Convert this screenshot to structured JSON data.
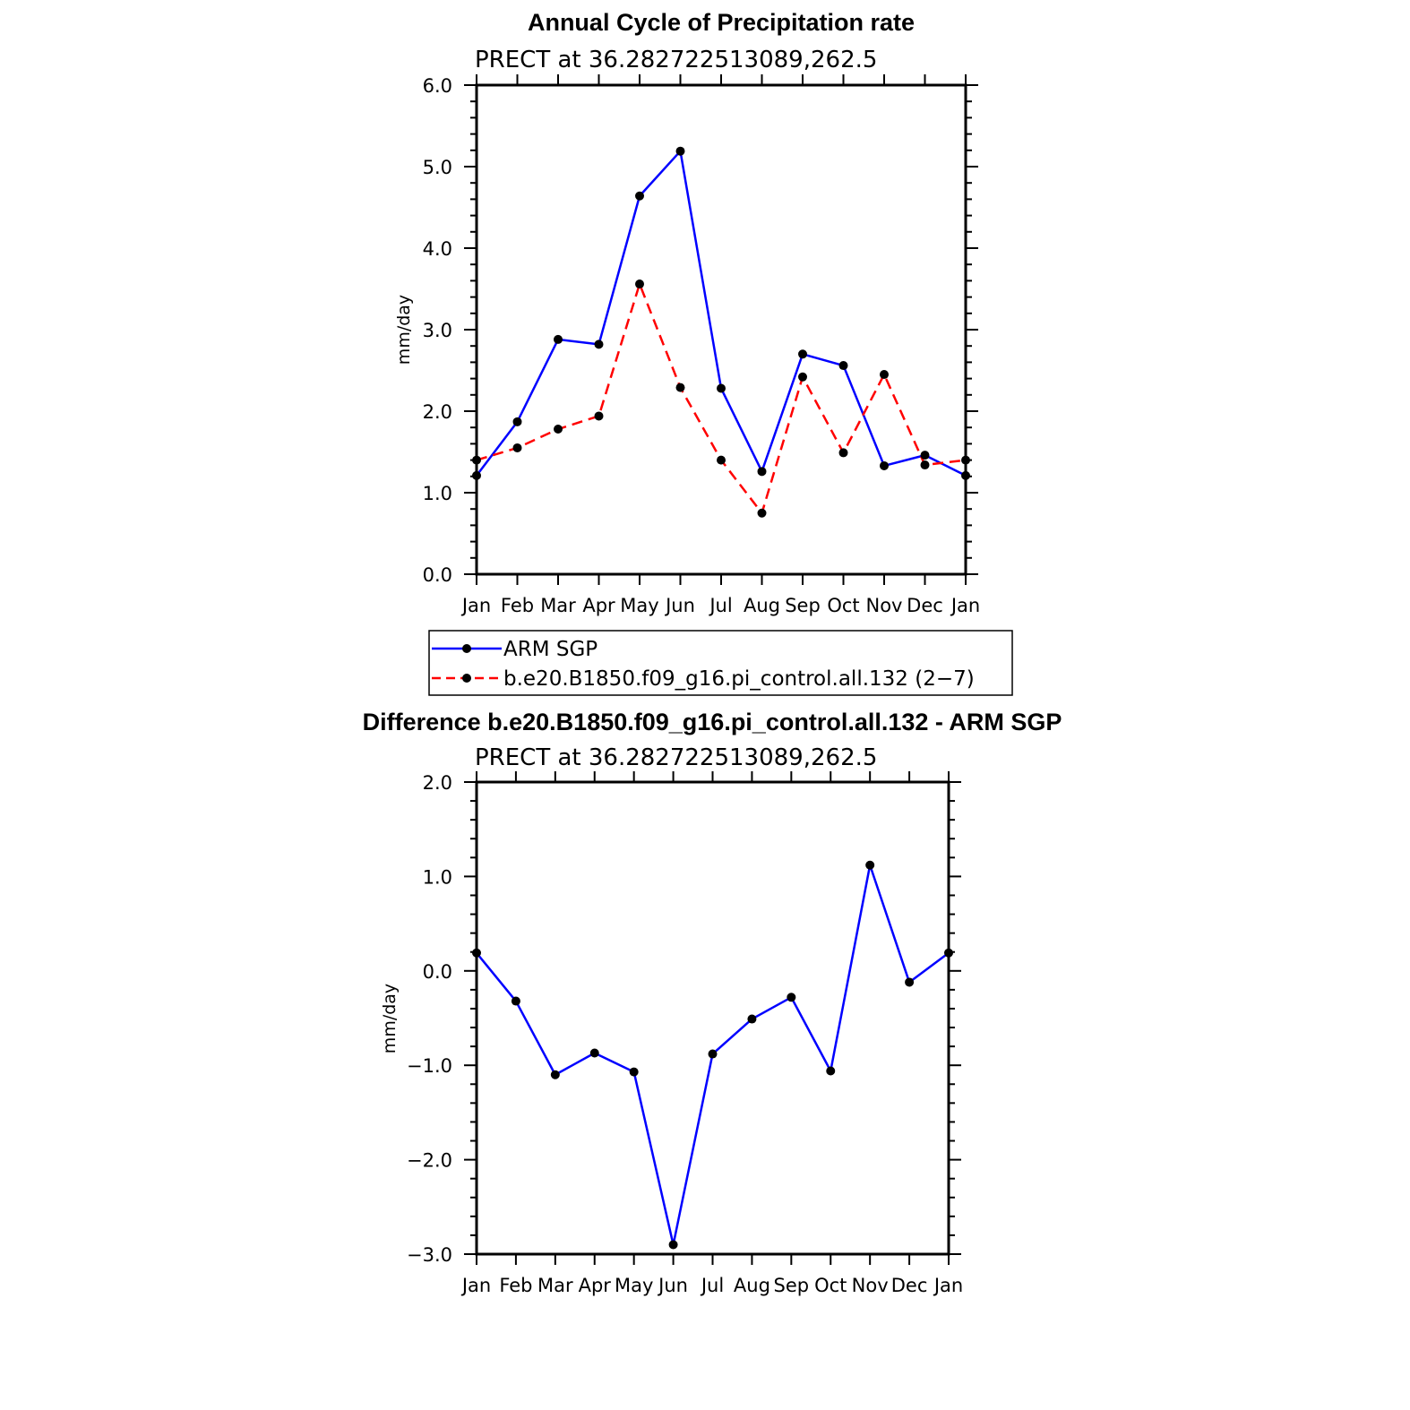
{
  "chart_data": [
    {
      "type": "line",
      "title": "Annual Cycle of Precipitation rate",
      "subtitle": "PRECT at 36.282722513089,262.5",
      "ylabel": "mm/day",
      "xlabel": "",
      "categories": [
        "Jan",
        "Feb",
        "Mar",
        "Apr",
        "May",
        "Jun",
        "Jul",
        "Aug",
        "Sep",
        "Oct",
        "Nov",
        "Dec",
        "Jan"
      ],
      "ylim": [
        0,
        6
      ],
      "yticks": [
        "0.0",
        "1.0",
        "2.0",
        "3.0",
        "4.0",
        "5.0",
        "6.0"
      ],
      "grid": false,
      "series": [
        {
          "name": "ARM SGP",
          "color": "#0000ff",
          "dash": "solid",
          "values": [
            1.21,
            1.87,
            2.88,
            2.82,
            4.64,
            5.19,
            2.28,
            1.26,
            2.7,
            2.56,
            1.33,
            1.46,
            1.21
          ]
        },
        {
          "name": "b.e20.B1850.f09_g16.pi_control.all.132 (2−7)",
          "color": "#ff0000",
          "dash": "dashed",
          "values": [
            1.4,
            1.55,
            1.78,
            1.94,
            3.56,
            2.29,
            1.4,
            0.75,
            2.42,
            1.49,
            2.45,
            1.34,
            1.4
          ]
        }
      ],
      "legend": "below"
    },
    {
      "type": "line",
      "title": "Difference b.e20.B1850.f09_g16.pi_control.all.132 - ARM SGP",
      "subtitle": "PRECT at 36.282722513089,262.5",
      "ylabel": "mm/day",
      "xlabel": "",
      "categories": [
        "Jan",
        "Feb",
        "Mar",
        "Apr",
        "May",
        "Jun",
        "Jul",
        "Aug",
        "Sep",
        "Oct",
        "Nov",
        "Dec",
        "Jan"
      ],
      "ylim": [
        -3,
        2
      ],
      "yticks": [
        "−3.0",
        "−2.0",
        "−1.0",
        "0.0",
        "1.0",
        "2.0"
      ],
      "grid": false,
      "series": [
        {
          "color": "#0000ff",
          "dash": "solid",
          "values": [
            0.19,
            -0.32,
            -1.1,
            -0.87,
            -1.07,
            -2.9,
            -0.88,
            -0.51,
            -0.28,
            -1.06,
            1.12,
            -0.12,
            0.19
          ]
        }
      ]
    }
  ]
}
